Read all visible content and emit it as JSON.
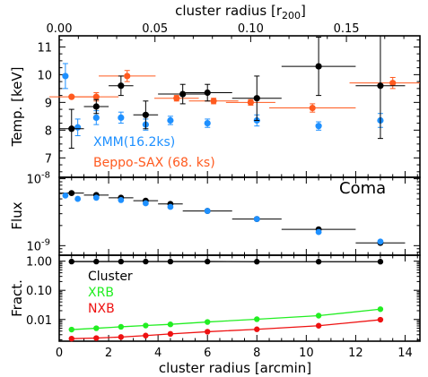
{
  "chart_data": {
    "top_axis": {
      "label": "cluster radius [r",
      "label_sub": "200",
      "label_close": "]",
      "ticks": [
        0.0,
        0.05,
        0.1,
        0.15
      ],
      "tick_labels": [
        "0.00",
        "0.05",
        "0.10",
        "0.15"
      ],
      "arcmin_per_r200": 77.5
    },
    "bottom_axis": {
      "label": "cluster radius [arcmin]",
      "range": [
        0,
        14.6
      ],
      "ticks": [
        0,
        2,
        4,
        6,
        8,
        10,
        12,
        14
      ],
      "tick_labels": [
        "0",
        "2",
        "4",
        "6",
        "8",
        "10",
        "12",
        "14"
      ]
    },
    "panels": [
      {
        "id": "temperature",
        "type": "scatter",
        "ylabel": "Temp. [keV]",
        "ylim": [
          6.3,
          11.4
        ],
        "yscale": "linear",
        "yticks": [
          7,
          8,
          9,
          10,
          11
        ],
        "ytick_labels": [
          "7",
          "8",
          "9",
          "10",
          "11"
        ],
        "legend": [
          {
            "text": "XMM(16.2ks)",
            "color": "#1e90ff"
          },
          {
            "text": "Beppo-SAX (68. ks)",
            "color": "#ff5a1f"
          }
        ],
        "series": [
          {
            "name": "XMM(16.2ks)",
            "color": "#1e90ff",
            "marker": "circle",
            "x": [
              0.25,
              0.75,
              1.5,
              2.5,
              3.5,
              4.5,
              6.0,
              8.0,
              10.5,
              13.0
            ],
            "y": [
              9.95,
              8.1,
              8.45,
              8.45,
              8.2,
              8.35,
              8.25,
              8.35,
              8.15,
              8.35
            ],
            "yerr": [
              0.45,
              0.3,
              0.25,
              0.2,
              0.2,
              0.15,
              0.15,
              0.2,
              0.15,
              0.25
            ]
          },
          {
            "name": "Beppo-SAX (68. ks)",
            "color": "#ff5a1f",
            "marker": "circle",
            "x": [
              0.5,
              1.5,
              2.75,
              4.75,
              6.25,
              7.75,
              10.25,
              13.5
            ],
            "y": [
              9.2,
              9.2,
              9.95,
              9.15,
              9.05,
              9.0,
              8.8,
              9.7
            ],
            "xerr": [
              0.9,
              0.9,
              1.15,
              0.9,
              1.0,
              1.0,
              1.75,
              1.75
            ],
            "yerr": [
              0.0,
              0.15,
              0.2,
              0.1,
              0.1,
              0.1,
              0.15,
              0.2
            ]
          },
          {
            "name": "",
            "color": "#000000",
            "marker": "circle",
            "x": [
              0.5,
              1.5,
              2.5,
              3.5,
              5.0,
              6.0,
              8.0,
              10.5,
              13.0
            ],
            "y": [
              8.05,
              8.85,
              9.6,
              8.55,
              9.3,
              9.35,
              9.15,
              10.3,
              9.6
            ],
            "xerr": [
              0.5,
              0.5,
              0.5,
              0.5,
              1.0,
              1.0,
              1.0,
              1.5,
              1.0
            ],
            "yerr": [
              0.7,
              0.25,
              0.35,
              0.5,
              0.35,
              0.3,
              0.8,
              1.05,
              1.9
            ]
          }
        ]
      },
      {
        "id": "flux",
        "type": "scatter",
        "ylabel": "Flux",
        "tag": "Coma",
        "ylim": [
          7.2e-10,
          1.05e-08
        ],
        "yscale": "log",
        "ytick_labels": [
          {
            "base": "10",
            "exp": "-8",
            "value": 1e-08
          },
          {
            "base": "10",
            "exp": "-9",
            "value": 1e-09
          }
        ],
        "series": [
          {
            "name": "",
            "color": "#000000",
            "marker": "circle",
            "x": [
              0.5,
              1.5,
              2.5,
              3.5,
              4.5,
              6.0,
              8.0,
              10.5,
              13.0
            ],
            "y": [
              6.1e-09,
              5.7e-09,
              5.2e-09,
              4.7e-09,
              4.2e-09,
              3.3e-09,
              2.5e-09,
              1.75e-09,
              1.1e-09
            ],
            "xerr": [
              0.5,
              0.5,
              0.5,
              0.5,
              0.5,
              1.0,
              1.0,
              1.5,
              1.0
            ]
          },
          {
            "name": "",
            "color": "#1e90ff",
            "marker": "circle",
            "x": [
              0.25,
              0.75,
              1.5,
              2.5,
              3.5,
              4.5,
              6.0,
              8.0,
              10.5,
              13.0
            ],
            "y": [
              5.6e-09,
              5e-09,
              5.2e-09,
              4.8e-09,
              4.3e-09,
              3.8e-09,
              3.3e-09,
              2.5e-09,
              1.6e-09,
              1.15e-09
            ]
          }
        ]
      },
      {
        "id": "fraction",
        "type": "line",
        "ylabel": "Fract.",
        "ylim": [
          0.0018,
          1.6
        ],
        "yscale": "log",
        "yticks": [
          1.0,
          0.1,
          0.01
        ],
        "ytick_labels": [
          "1.00",
          "0.10",
          "0.01"
        ],
        "legend": [
          {
            "text": "Cluster",
            "color": "#000000"
          },
          {
            "text": "XRB",
            "color": "#22ee22"
          },
          {
            "text": "NXB",
            "color": "#ee1111"
          }
        ],
        "series": [
          {
            "name": "Cluster",
            "color": "#000000",
            "x": [
              0.5,
              1.5,
              2.5,
              3.5,
              4.5,
              6.0,
              8.0,
              10.5,
              13.0
            ],
            "y": [
              0.97,
              0.97,
              0.97,
              0.97,
              0.97,
              0.97,
              0.96,
              0.96,
              0.96
            ]
          },
          {
            "name": "XRB",
            "color": "#22ee22",
            "x": [
              0.5,
              1.5,
              2.5,
              3.5,
              4.5,
              6.0,
              8.0,
              10.5,
              13.0
            ],
            "y": [
              0.0045,
              0.005,
              0.0056,
              0.0062,
              0.0068,
              0.0082,
              0.0102,
              0.0135,
              0.0225
            ]
          },
          {
            "name": "NXB",
            "color": "#ee1111",
            "x": [
              0.5,
              1.5,
              2.5,
              3.5,
              4.5,
              6.0,
              8.0,
              10.5,
              13.0
            ],
            "y": [
              0.0022,
              0.0023,
              0.0025,
              0.0028,
              0.0032,
              0.0038,
              0.0046,
              0.0061,
              0.0098
            ]
          }
        ]
      }
    ]
  }
}
